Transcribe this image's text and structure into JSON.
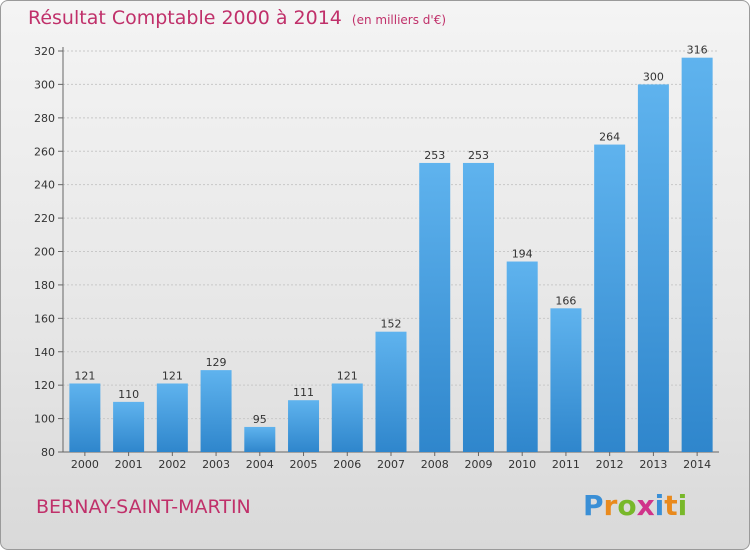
{
  "header": {
    "title": "Résultat Comptable 2000 à 2014",
    "subtitle": "(en milliers d'€)"
  },
  "footer": {
    "commune": "BERNAY-SAINT-MARTIN",
    "brand": [
      "P",
      "r",
      "o",
      "x",
      "i",
      "t",
      "i"
    ],
    "brand_colors": [
      "#3a8fd6",
      "#e98a1d",
      "#78b82a",
      "#d0338a",
      "#3a8fd6",
      "#e98a1d",
      "#78b82a"
    ]
  },
  "colors": {
    "bar_light": "#5fb3ee",
    "bar_dark": "#2f86cc",
    "grid": "#c8c8c8",
    "axis_text": "#333333"
  },
  "chart_data": {
    "type": "bar",
    "title": "Résultat Comptable 2000 à 2014",
    "subtitle": "(en milliers d'€)",
    "xlabel": "",
    "ylabel": "",
    "categories": [
      "2000",
      "2001",
      "2002",
      "2003",
      "2004",
      "2005",
      "2006",
      "2007",
      "2008",
      "2009",
      "2010",
      "2011",
      "2012",
      "2013",
      "2014"
    ],
    "values": [
      121,
      110,
      121,
      129,
      95,
      111,
      121,
      152,
      253,
      253,
      194,
      166,
      264,
      300,
      316
    ],
    "ylim": [
      80,
      320
    ],
    "yticks": [
      80,
      100,
      120,
      140,
      160,
      180,
      200,
      220,
      240,
      260,
      280,
      300,
      320
    ],
    "grid": true
  }
}
